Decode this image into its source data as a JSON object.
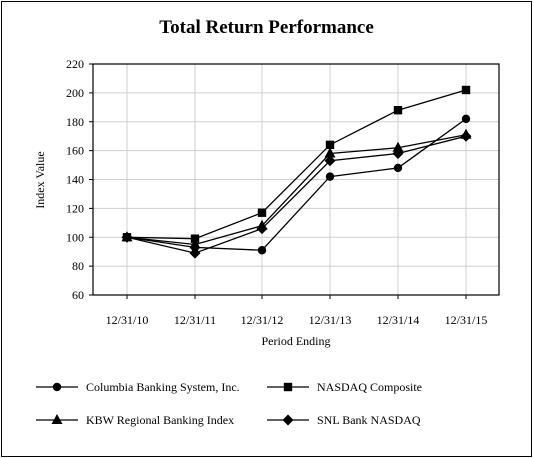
{
  "chart_data": {
    "type": "line",
    "title": "Total Return Performance",
    "xlabel": "Period Ending",
    "ylabel": "Index Value",
    "categories": [
      "12/31/10",
      "12/31/11",
      "12/31/12",
      "12/31/13",
      "12/31/14",
      "12/31/15"
    ],
    "ylim": [
      60,
      220
    ],
    "yticks": [
      60,
      80,
      100,
      120,
      140,
      160,
      180,
      200,
      220
    ],
    "grid": true,
    "legend_position": "bottom",
    "series": [
      {
        "name": "Columbia Banking System, Inc.",
        "marker": "circle",
        "values": [
          100,
          93,
          91,
          142,
          148,
          182
        ]
      },
      {
        "name": "NASDAQ Composite",
        "marker": "square",
        "values": [
          100,
          99,
          117,
          164,
          188,
          202
        ]
      },
      {
        "name": "KBW Regional Banking Index",
        "marker": "triangle",
        "values": [
          100,
          95,
          108,
          158,
          162,
          171
        ]
      },
      {
        "name": "SNL Bank NASDAQ",
        "marker": "diamond",
        "values": [
          100,
          89,
          106,
          153,
          158,
          170
        ]
      }
    ]
  }
}
